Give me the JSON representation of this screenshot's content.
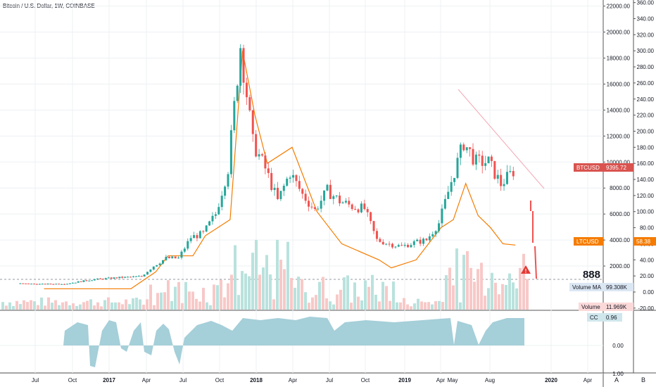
{
  "header": {
    "title": "Bitcoin / U.S. Dollar, 1W, COINBASE"
  },
  "colors": {
    "up": "#26a69a",
    "down": "#ef5350",
    "ltc": "#f57c00",
    "volume_up": "#b9e2dd",
    "volume_down": "#f7c9c8",
    "cc": "#a5cfd9",
    "trendline": "#f3a7b4",
    "btc_badge": "#d9534f",
    "ltc_badge": "#f57c00",
    "warning": "#e53935"
  },
  "left_axis": {
    "ticks": [
      "22000.00",
      "20000.00",
      "18000.00",
      "16000.00",
      "14000.00",
      "12000.00",
      "10000.00",
      "8000.00",
      "6000.00",
      "4000.00",
      "2000.00"
    ]
  },
  "right_axis": {
    "ticks": [
      "360.00",
      "340.00",
      "320.00",
      "300.00",
      "280.00",
      "260.00",
      "240.00",
      "220.00",
      "200.00",
      "180.00",
      "160.00",
      "140.00",
      "120.00",
      "100.00",
      "80.00",
      "60.00",
      "40.00",
      "20.00",
      "0.00",
      "-20.00"
    ]
  },
  "lower_axis": {
    "ticks": [
      "0.00",
      "1.00"
    ]
  },
  "x_axis": {
    "ticks": [
      "Jul",
      "Oct",
      "2017",
      "Apr",
      "Jul",
      "Oct",
      "2018",
      "Apr",
      "Jul",
      "Oct",
      "2019",
      "Apr",
      "May",
      "Aug",
      "2020",
      "Apr"
    ]
  },
  "labels": {
    "btc": {
      "name": "BTCUSD",
      "value": "9395.72"
    },
    "ltc": {
      "name": "LTCUSD",
      "value": "58.38"
    },
    "volume_ma": {
      "name": "Volume MA",
      "value": "99.308K"
    },
    "volume": {
      "name": "Volume",
      "value": "11.969K"
    },
    "cc": {
      "name": "CC",
      "value": "0.96"
    },
    "big_value": "888"
  },
  "buttons": {
    "a": "A",
    "b": "B"
  },
  "chart_data": {
    "type": "candlestick",
    "title": "Bitcoin / U.S. Dollar, 1W, COINBASE",
    "y_left": {
      "min": 0,
      "max": 22000,
      "label": ""
    },
    "y_right": {
      "min": -20,
      "max": 360,
      "label": ""
    },
    "series": [
      {
        "name": "BTCUSD",
        "type": "candlestick",
        "last": 9395.72,
        "close_path": [
          [
            "2016-06",
            650
          ],
          [
            "2016-08",
            600
          ],
          [
            "2016-10",
            650
          ],
          [
            "2016-12",
            950
          ],
          [
            "2017-02",
            1100
          ],
          [
            "2017-04",
            1200
          ],
          [
            "2017-05",
            2000
          ],
          [
            "2017-06",
            2600
          ],
          [
            "2017-07",
            2600
          ],
          [
            "2017-08",
            4200
          ],
          [
            "2017-09",
            4500
          ],
          [
            "2017-10",
            6000
          ],
          [
            "2017-11",
            9500
          ],
          [
            "2017-12",
            19000
          ],
          [
            "2018-01",
            11500
          ],
          [
            "2018-02",
            9500
          ],
          [
            "2018-03",
            7000
          ],
          [
            "2018-04",
            9200
          ],
          [
            "2018-05",
            7500
          ],
          [
            "2018-06",
            6300
          ],
          [
            "2018-07",
            7800
          ],
          [
            "2018-08",
            7000
          ],
          [
            "2018-09",
            6600
          ],
          [
            "2018-10",
            6400
          ],
          [
            "2018-11",
            4000
          ],
          [
            "2018-12",
            3700
          ],
          [
            "2019-01",
            3500
          ],
          [
            "2019-02",
            3800
          ],
          [
            "2019-03",
            4000
          ],
          [
            "2019-04",
            5300
          ],
          [
            "2019-05",
            8500
          ],
          [
            "2019-06",
            11500
          ],
          [
            "2019-07",
            10000
          ],
          [
            "2019-08",
            10000
          ],
          [
            "2019-09",
            8300
          ],
          [
            "2019-10",
            9300
          ]
        ]
      },
      {
        "name": "LTCUSD",
        "type": "line",
        "last": 58.38,
        "path": [
          [
            "2016-08",
            4
          ],
          [
            "2017-03",
            4
          ],
          [
            "2017-05",
            25
          ],
          [
            "2017-06",
            45
          ],
          [
            "2017-08",
            45
          ],
          [
            "2017-09",
            70
          ],
          [
            "2017-11",
            90
          ],
          [
            "2017-12",
            300
          ],
          [
            "2018-01",
            220
          ],
          [
            "2018-02",
            160
          ],
          [
            "2018-04",
            180
          ],
          [
            "2018-05",
            140
          ],
          [
            "2018-06",
            100
          ],
          [
            "2018-08",
            60
          ],
          [
            "2018-11",
            40
          ],
          [
            "2018-12",
            30
          ],
          [
            "2019-02",
            40
          ],
          [
            "2019-04",
            80
          ],
          [
            "2019-05",
            90
          ],
          [
            "2019-06",
            135
          ],
          [
            "2019-07",
            95
          ],
          [
            "2019-08",
            80
          ],
          [
            "2019-09",
            60
          ],
          [
            "2019-10",
            58.38
          ]
        ]
      }
    ],
    "annotations": [
      {
        "text": "888"
      }
    ]
  }
}
